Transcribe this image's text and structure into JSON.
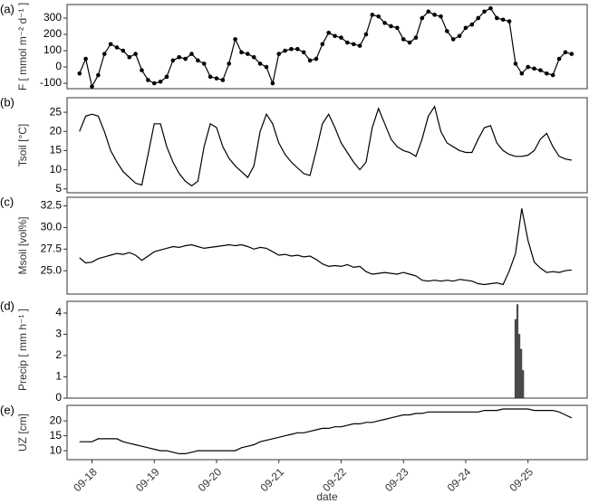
{
  "chart_data": [
    {
      "type": "line",
      "panel_label": "(a)",
      "ylabel": "F [ mmol m⁻² d⁻¹ ]",
      "markers": true,
      "color": "#000000",
      "xlim": [
        17.6,
        25.95
      ],
      "ylim": [
        -133,
        383
      ],
      "yticks": [
        -100,
        0,
        100,
        200,
        300
      ],
      "x": [
        17.8,
        17.9,
        18.0,
        18.1,
        18.2,
        18.3,
        18.4,
        18.5,
        18.6,
        18.7,
        18.8,
        18.9,
        19.0,
        19.1,
        19.2,
        19.3,
        19.4,
        19.5,
        19.6,
        19.7,
        19.8,
        19.9,
        20.0,
        20.1,
        20.2,
        20.3,
        20.4,
        20.5,
        20.6,
        20.7,
        20.8,
        20.9,
        21.0,
        21.1,
        21.2,
        21.3,
        21.4,
        21.5,
        21.6,
        21.7,
        21.8,
        21.9,
        22.0,
        22.1,
        22.2,
        22.3,
        22.4,
        22.5,
        22.6,
        22.7,
        22.8,
        22.9,
        23.0,
        23.1,
        23.2,
        23.3,
        23.4,
        23.5,
        23.6,
        23.7,
        23.8,
        23.9,
        24.0,
        24.1,
        24.2,
        24.3,
        24.4,
        24.5,
        24.6,
        24.7,
        24.8,
        24.9,
        25.0,
        25.1,
        25.2,
        25.3,
        25.4,
        25.5,
        25.6,
        25.7
      ],
      "values": [
        -40,
        50,
        -120,
        -50,
        80,
        140,
        120,
        100,
        60,
        80,
        -20,
        -80,
        -100,
        -90,
        -60,
        40,
        60,
        50,
        80,
        40,
        20,
        -60,
        -70,
        -80,
        20,
        170,
        90,
        80,
        60,
        20,
        0,
        -100,
        80,
        100,
        110,
        110,
        90,
        40,
        50,
        140,
        210,
        190,
        180,
        150,
        140,
        130,
        200,
        320,
        310,
        270,
        250,
        240,
        170,
        150,
        180,
        300,
        340,
        320,
        310,
        220,
        170,
        190,
        240,
        260,
        300,
        340,
        360,
        300,
        290,
        280,
        20,
        -40,
        0,
        -10,
        -20,
        -40,
        -50,
        50,
        90,
        80
      ]
    },
    {
      "type": "line",
      "panel_label": "(b)",
      "ylabel": "Tsoil [°C]",
      "markers": false,
      "color": "#000000",
      "xlim": [
        17.6,
        25.95
      ],
      "ylim": [
        4,
        28.8
      ],
      "yticks": [
        5,
        10,
        15,
        20,
        25
      ],
      "x": [
        17.8,
        17.9,
        18.0,
        18.1,
        18.2,
        18.3,
        18.4,
        18.5,
        18.6,
        18.7,
        18.8,
        18.9,
        19.0,
        19.1,
        19.2,
        19.3,
        19.4,
        19.5,
        19.6,
        19.7,
        19.8,
        19.9,
        20.0,
        20.1,
        20.2,
        20.3,
        20.4,
        20.5,
        20.6,
        20.7,
        20.8,
        20.9,
        21.0,
        21.1,
        21.2,
        21.3,
        21.4,
        21.5,
        21.6,
        21.7,
        21.8,
        21.9,
        22.0,
        22.1,
        22.2,
        22.3,
        22.4,
        22.5,
        22.6,
        22.7,
        22.8,
        22.9,
        23.0,
        23.1,
        23.2,
        23.3,
        23.4,
        23.5,
        23.6,
        23.7,
        23.8,
        23.9,
        24.0,
        24.1,
        24.2,
        24.3,
        24.4,
        24.5,
        24.6,
        24.7,
        24.8,
        24.9,
        25.0,
        25.1,
        25.2,
        25.3,
        25.4,
        25.5,
        25.6,
        25.7
      ],
      "values": [
        20,
        24,
        24.5,
        24,
        20,
        15,
        12,
        9.5,
        8,
        6.5,
        6,
        14,
        22,
        22,
        16,
        12,
        9,
        7,
        5.8,
        7,
        16,
        22,
        21,
        16,
        13,
        11,
        9.5,
        8,
        11,
        20,
        24.5,
        22,
        17,
        14,
        12,
        10.5,
        9,
        8.5,
        15,
        22,
        24.5,
        21,
        17,
        14.5,
        12,
        10,
        12,
        21,
        26,
        22,
        18,
        16,
        15,
        14.5,
        13.5,
        18,
        24,
        26.5,
        20,
        17,
        16,
        15,
        14.5,
        14.5,
        18,
        21,
        21.5,
        17,
        15,
        14,
        13.5,
        13.5,
        13.8,
        15,
        18,
        19.5,
        16,
        13.5,
        12.8,
        12.5
      ]
    },
    {
      "type": "line",
      "panel_label": "(c)",
      "ylabel": "Msoil [vol%]",
      "markers": false,
      "color": "#000000",
      "xlim": [
        17.6,
        25.95
      ],
      "ylim": [
        22.3,
        33.5
      ],
      "yticks": [
        {
          "value": 25,
          "label": "25.0"
        },
        27.5,
        {
          "value": 30,
          "label": "30.0"
        },
        32.5
      ],
      "x": [
        17.8,
        17.9,
        18.0,
        18.1,
        18.2,
        18.3,
        18.4,
        18.5,
        18.6,
        18.7,
        18.8,
        18.9,
        19.0,
        19.1,
        19.2,
        19.3,
        19.4,
        19.5,
        19.6,
        19.7,
        19.8,
        19.9,
        20.0,
        20.1,
        20.2,
        20.3,
        20.4,
        20.5,
        20.6,
        20.7,
        20.8,
        20.9,
        21.0,
        21.1,
        21.2,
        21.3,
        21.4,
        21.5,
        21.6,
        21.7,
        21.8,
        21.9,
        22.0,
        22.1,
        22.2,
        22.3,
        22.4,
        22.5,
        22.6,
        22.7,
        22.8,
        22.9,
        23.0,
        23.1,
        23.2,
        23.3,
        23.4,
        23.5,
        23.6,
        23.7,
        23.8,
        23.9,
        24.0,
        24.1,
        24.2,
        24.3,
        24.4,
        24.5,
        24.6,
        24.7,
        24.8,
        24.9,
        25.0,
        25.1,
        25.2,
        25.3,
        25.4,
        25.5,
        25.6,
        25.7
      ],
      "values": [
        26.5,
        25.9,
        26.0,
        26.4,
        26.6,
        26.8,
        27.0,
        26.9,
        27.1,
        26.8,
        26.2,
        26.7,
        27.2,
        27.4,
        27.6,
        27.8,
        27.7,
        27.9,
        28.0,
        27.8,
        27.6,
        27.7,
        27.8,
        27.9,
        28.0,
        27.9,
        28.0,
        27.8,
        27.5,
        27.7,
        27.6,
        27.2,
        26.8,
        26.9,
        26.7,
        26.8,
        26.6,
        26.7,
        26.3,
        25.8,
        25.5,
        25.6,
        25.5,
        25.7,
        25.4,
        25.5,
        24.9,
        24.6,
        24.7,
        24.8,
        24.7,
        24.6,
        24.8,
        24.6,
        24.4,
        23.9,
        23.8,
        23.9,
        23.8,
        23.9,
        23.8,
        24.0,
        23.9,
        23.8,
        23.5,
        23.4,
        23.5,
        23.6,
        23.4,
        25.0,
        27.0,
        32.2,
        28.5,
        26.0,
        25.3,
        24.8,
        24.9,
        24.8,
        25.0,
        25.1
      ]
    },
    {
      "type": "bar",
      "panel_label": "(d)",
      "ylabel": "Precip [ mm h⁻¹ ]",
      "color": "#555555",
      "xlim": [
        17.6,
        25.95
      ],
      "ylim": [
        0,
        4.55
      ],
      "yticks": [
        0,
        1,
        2,
        3,
        4
      ],
      "x": [
        24.8,
        24.83,
        24.86,
        24.89,
        24.92
      ],
      "values": [
        3.7,
        4.4,
        3.0,
        2.3,
        1.3
      ]
    },
    {
      "type": "line",
      "panel_label": "(e)",
      "ylabel": "UZ [cm]",
      "markers": false,
      "color": "#000000",
      "xlabel": "date",
      "xlim": [
        17.6,
        25.95
      ],
      "ylim": [
        7,
        25.2
      ],
      "yticks": [
        10,
        15,
        20
      ],
      "xticks": [
        {
          "value": 18,
          "label": "09-18"
        },
        {
          "value": 19,
          "label": "09-19"
        },
        {
          "value": 20,
          "label": "09-20"
        },
        {
          "value": 21,
          "label": "09-21"
        },
        {
          "value": 22,
          "label": "09-22"
        },
        {
          "value": 23,
          "label": "09-23"
        },
        {
          "value": 24,
          "label": "09-24"
        },
        {
          "value": 25,
          "label": "09-25"
        }
      ],
      "x": [
        17.8,
        17.9,
        18.0,
        18.1,
        18.2,
        18.3,
        18.4,
        18.5,
        18.6,
        18.7,
        18.8,
        18.9,
        19.0,
        19.1,
        19.2,
        19.3,
        19.4,
        19.5,
        19.6,
        19.7,
        19.8,
        19.9,
        20.0,
        20.1,
        20.2,
        20.3,
        20.4,
        20.5,
        20.6,
        20.7,
        20.8,
        20.9,
        21.0,
        21.1,
        21.2,
        21.3,
        21.4,
        21.5,
        21.6,
        21.7,
        21.8,
        21.9,
        22.0,
        22.1,
        22.2,
        22.3,
        22.4,
        22.5,
        22.6,
        22.7,
        22.8,
        22.9,
        23.0,
        23.1,
        23.2,
        23.3,
        23.4,
        23.5,
        23.6,
        23.7,
        23.8,
        23.9,
        24.0,
        24.1,
        24.2,
        24.3,
        24.4,
        24.5,
        24.6,
        24.7,
        24.8,
        24.9,
        25.0,
        25.1,
        25.2,
        25.3,
        25.4,
        25.5,
        25.6,
        25.7
      ],
      "values": [
        13,
        13,
        13,
        14,
        14,
        14,
        14,
        13,
        12.5,
        12,
        11.5,
        11,
        10.5,
        10,
        10,
        9.5,
        9,
        9,
        9.5,
        10,
        10,
        10,
        10,
        10,
        10,
        10,
        11,
        11.5,
        12,
        13,
        13.5,
        14,
        14.5,
        15,
        15.5,
        16,
        16,
        16.5,
        17,
        17.5,
        17.5,
        18,
        18,
        18.5,
        19,
        19,
        19.5,
        19.5,
        20,
        20.5,
        21,
        21.5,
        22,
        22,
        22.5,
        22.5,
        23,
        23,
        23,
        23,
        23,
        23,
        23,
        23,
        23,
        23.5,
        23.5,
        23.5,
        24,
        24,
        24,
        24,
        24,
        23.5,
        23.5,
        23.5,
        23.5,
        23,
        22,
        21
      ]
    }
  ]
}
